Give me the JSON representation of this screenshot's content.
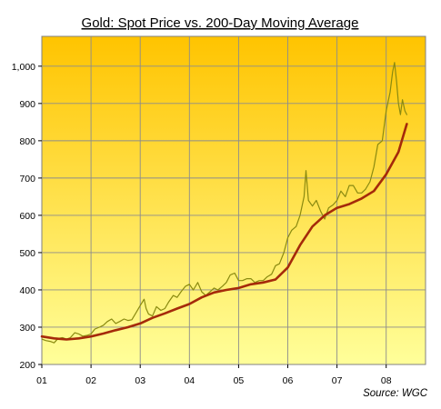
{
  "chart_data": {
    "type": "line",
    "title": "Gold: Spot Price vs. 200-Day Moving Average",
    "xlabel": "",
    "ylabel": "",
    "source_note": "Source: WGC",
    "xlim": [
      2001.0,
      2008.8
    ],
    "ylim": [
      200,
      1080
    ],
    "x_ticks": [
      {
        "v": 2001.0,
        "label": "01"
      },
      {
        "v": 2002.0,
        "label": "02"
      },
      {
        "v": 2003.0,
        "label": "03"
      },
      {
        "v": 2004.0,
        "label": "04"
      },
      {
        "v": 2005.0,
        "label": "05"
      },
      {
        "v": 2006.0,
        "label": "06"
      },
      {
        "v": 2007.0,
        "label": "07"
      },
      {
        "v": 2008.0,
        "label": "08"
      }
    ],
    "y_ticks": [
      {
        "v": 200,
        "label": "200"
      },
      {
        "v": 300,
        "label": "300"
      },
      {
        "v": 400,
        "label": "400"
      },
      {
        "v": 500,
        "label": "500"
      },
      {
        "v": 600,
        "label": "600"
      },
      {
        "v": 700,
        "label": "700"
      },
      {
        "v": 800,
        "label": "800"
      },
      {
        "v": 900,
        "label": "900"
      },
      {
        "v": 1000,
        "label": "1,000"
      }
    ],
    "grid": true,
    "background_gradient": [
      "#ffc400",
      "#ffff9a"
    ],
    "series": [
      {
        "color": "#8a8a10",
        "points": [
          [
            2001.0,
            268
          ],
          [
            2001.08,
            264
          ],
          [
            2001.17,
            262
          ],
          [
            2001.25,
            258
          ],
          [
            2001.33,
            270
          ],
          [
            2001.42,
            272
          ],
          [
            2001.5,
            268
          ],
          [
            2001.58,
            272
          ],
          [
            2001.67,
            285
          ],
          [
            2001.75,
            282
          ],
          [
            2001.83,
            276
          ],
          [
            2001.92,
            278
          ],
          [
            2002.0,
            282
          ],
          [
            2002.08,
            295
          ],
          [
            2002.17,
            300
          ],
          [
            2002.25,
            305
          ],
          [
            2002.33,
            315
          ],
          [
            2002.42,
            322
          ],
          [
            2002.5,
            310
          ],
          [
            2002.58,
            315
          ],
          [
            2002.67,
            322
          ],
          [
            2002.75,
            318
          ],
          [
            2002.83,
            320
          ],
          [
            2002.92,
            340
          ],
          [
            2003.0,
            358
          ],
          [
            2003.08,
            375
          ],
          [
            2003.12,
            350
          ],
          [
            2003.17,
            335
          ],
          [
            2003.25,
            330
          ],
          [
            2003.33,
            355
          ],
          [
            2003.42,
            345
          ],
          [
            2003.5,
            350
          ],
          [
            2003.58,
            368
          ],
          [
            2003.67,
            385
          ],
          [
            2003.75,
            380
          ],
          [
            2003.83,
            395
          ],
          [
            2003.92,
            410
          ],
          [
            2004.0,
            415
          ],
          [
            2004.08,
            400
          ],
          [
            2004.17,
            420
          ],
          [
            2004.25,
            395
          ],
          [
            2004.33,
            385
          ],
          [
            2004.42,
            395
          ],
          [
            2004.5,
            405
          ],
          [
            2004.58,
            400
          ],
          [
            2004.67,
            410
          ],
          [
            2004.75,
            420
          ],
          [
            2004.83,
            440
          ],
          [
            2004.92,
            445
          ],
          [
            2005.0,
            425
          ],
          [
            2005.08,
            425
          ],
          [
            2005.17,
            430
          ],
          [
            2005.25,
            430
          ],
          [
            2005.33,
            420
          ],
          [
            2005.42,
            425
          ],
          [
            2005.5,
            425
          ],
          [
            2005.58,
            435
          ],
          [
            2005.67,
            442
          ],
          [
            2005.75,
            465
          ],
          [
            2005.83,
            470
          ],
          [
            2005.92,
            500
          ],
          [
            2006.0,
            540
          ],
          [
            2006.08,
            560
          ],
          [
            2006.17,
            570
          ],
          [
            2006.25,
            600
          ],
          [
            2006.33,
            650
          ],
          [
            2006.37,
            720
          ],
          [
            2006.42,
            640
          ],
          [
            2006.5,
            625
          ],
          [
            2006.58,
            640
          ],
          [
            2006.67,
            610
          ],
          [
            2006.75,
            590
          ],
          [
            2006.83,
            620
          ],
          [
            2006.92,
            628
          ],
          [
            2007.0,
            640
          ],
          [
            2007.08,
            665
          ],
          [
            2007.17,
            650
          ],
          [
            2007.25,
            680
          ],
          [
            2007.33,
            680
          ],
          [
            2007.42,
            660
          ],
          [
            2007.5,
            660
          ],
          [
            2007.58,
            670
          ],
          [
            2007.67,
            690
          ],
          [
            2007.75,
            730
          ],
          [
            2007.83,
            790
          ],
          [
            2007.92,
            800
          ],
          [
            2008.0,
            880
          ],
          [
            2008.08,
            930
          ],
          [
            2008.13,
            985
          ],
          [
            2008.17,
            1010
          ],
          [
            2008.21,
            960
          ],
          [
            2008.25,
            900
          ],
          [
            2008.29,
            870
          ],
          [
            2008.33,
            910
          ],
          [
            2008.38,
            880
          ],
          [
            2008.42,
            870
          ]
        ]
      },
      {
        "color": "#a52a0a",
        "points": [
          [
            2001.0,
            275
          ],
          [
            2001.25,
            270
          ],
          [
            2001.5,
            267
          ],
          [
            2001.75,
            270
          ],
          [
            2002.0,
            275
          ],
          [
            2002.25,
            283
          ],
          [
            2002.5,
            292
          ],
          [
            2002.75,
            300
          ],
          [
            2003.0,
            310
          ],
          [
            2003.25,
            325
          ],
          [
            2003.5,
            337
          ],
          [
            2003.75,
            350
          ],
          [
            2004.0,
            362
          ],
          [
            2004.25,
            380
          ],
          [
            2004.5,
            393
          ],
          [
            2004.75,
            400
          ],
          [
            2005.0,
            405
          ],
          [
            2005.25,
            415
          ],
          [
            2005.5,
            420
          ],
          [
            2005.75,
            428
          ],
          [
            2006.0,
            460
          ],
          [
            2006.25,
            520
          ],
          [
            2006.5,
            570
          ],
          [
            2006.75,
            600
          ],
          [
            2007.0,
            620
          ],
          [
            2007.25,
            630
          ],
          [
            2007.5,
            645
          ],
          [
            2007.75,
            665
          ],
          [
            2008.0,
            710
          ],
          [
            2008.25,
            770
          ],
          [
            2008.42,
            845
          ]
        ]
      }
    ]
  }
}
